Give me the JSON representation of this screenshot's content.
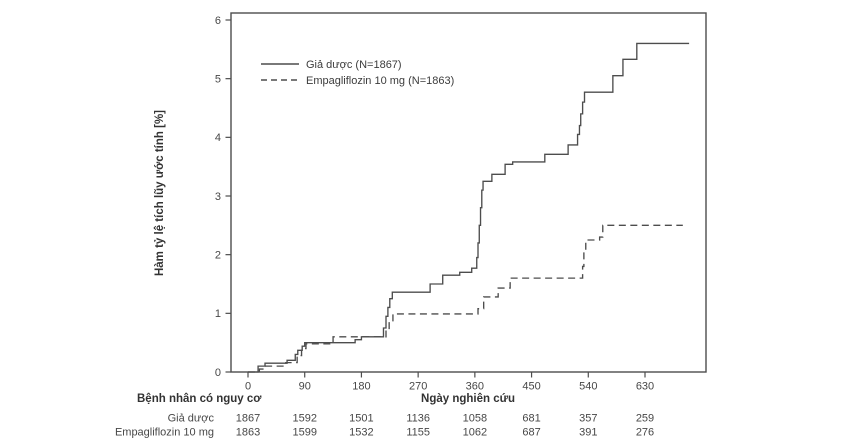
{
  "colors": {
    "line": "#4d4d4d",
    "frame": "#4d4d4d",
    "text": "#3c3c3c"
  },
  "labels": {
    "ylabel": "Hàm tỷ lệ tích lũy ước tính [%]",
    "xlabel": "Ngày nghiên cứu",
    "at_risk_header": "Bệnh nhân có nguy cơ"
  },
  "chart_data": {
    "type": "line",
    "subtype": "kaplan-meier-step",
    "title": "",
    "xlabel": "Ngày nghiên cứu",
    "ylabel": "Hàm tỷ lệ tích lũy ước tính [%]",
    "xlim": [
      0,
      727
    ],
    "ylim": [
      0,
      6
    ],
    "x_ticks": [
      0,
      90,
      180,
      270,
      360,
      450,
      540,
      630
    ],
    "y_ticks": [
      0,
      1,
      2,
      3,
      4,
      5,
      6
    ],
    "grid": false,
    "legend": {
      "position": "upper-left-inside",
      "entries": [
        "Giả dược (N=1867)",
        "Empagliflozin 10 mg (N=1863)"
      ]
    },
    "series": [
      {
        "name": "Giả dược (N=1867)",
        "line_style": "solid",
        "color": "#4d4d4d",
        "step_points": [
          [
            0,
            0
          ],
          [
            16,
            0.1
          ],
          [
            27,
            0.15
          ],
          [
            62,
            0.2
          ],
          [
            75,
            0.3
          ],
          [
            79,
            0.37
          ],
          [
            86,
            0.44
          ],
          [
            90,
            0.5
          ],
          [
            170,
            0.55
          ],
          [
            180,
            0.6
          ],
          [
            215,
            0.75
          ],
          [
            219,
            0.95
          ],
          [
            222,
            1.1
          ],
          [
            225,
            1.25
          ],
          [
            229,
            1.36
          ],
          [
            289,
            1.5
          ],
          [
            309,
            1.65
          ],
          [
            336,
            1.7
          ],
          [
            355,
            1.77
          ],
          [
            363,
            1.95
          ],
          [
            365,
            2.2
          ],
          [
            367,
            2.5
          ],
          [
            369,
            2.8
          ],
          [
            371,
            3.1
          ],
          [
            373,
            3.25
          ],
          [
            387,
            3.37
          ],
          [
            408,
            3.54
          ],
          [
            420,
            3.58
          ],
          [
            471,
            3.71
          ],
          [
            508,
            3.87
          ],
          [
            523,
            4.05
          ],
          [
            526,
            4.2
          ],
          [
            528,
            4.4
          ],
          [
            531,
            4.6
          ],
          [
            534,
            4.77
          ],
          [
            579,
            5.05
          ],
          [
            595,
            5.33
          ],
          [
            617,
            5.6
          ],
          [
            700,
            5.6
          ]
        ]
      },
      {
        "name": "Empagliflozin 10 mg (N=1863)",
        "line_style": "dashed",
        "color": "#4d4d4d",
        "step_points": [
          [
            0,
            0
          ],
          [
            18,
            0.05
          ],
          [
            26,
            0.1
          ],
          [
            60,
            0.16
          ],
          [
            78,
            0.28
          ],
          [
            85,
            0.4
          ],
          [
            92,
            0.48
          ],
          [
            135,
            0.6
          ],
          [
            219,
            0.72
          ],
          [
            224,
            0.85
          ],
          [
            230,
            0.99
          ],
          [
            365,
            1.08
          ],
          [
            374,
            1.28
          ],
          [
            397,
            1.43
          ],
          [
            416,
            1.6
          ],
          [
            531,
            1.8
          ],
          [
            533,
            2.05
          ],
          [
            536,
            2.25
          ],
          [
            558,
            2.3
          ],
          [
            563,
            2.5
          ],
          [
            690,
            2.5
          ]
        ]
      }
    ],
    "at_risk_table": {
      "header": "Bệnh nhân có nguy cơ",
      "days": [
        0,
        90,
        180,
        270,
        360,
        450,
        540,
        630
      ],
      "rows": [
        {
          "label": "Giả dược",
          "values": [
            "1867",
            "1592",
            "1501",
            "1136",
            "1058",
            "681",
            "357",
            "259"
          ]
        },
        {
          "label": "Empagliflozin 10 mg",
          "values": [
            "1863",
            "1599",
            "1532",
            "1155",
            "1062",
            "687",
            "391",
            "276"
          ]
        }
      ]
    }
  }
}
